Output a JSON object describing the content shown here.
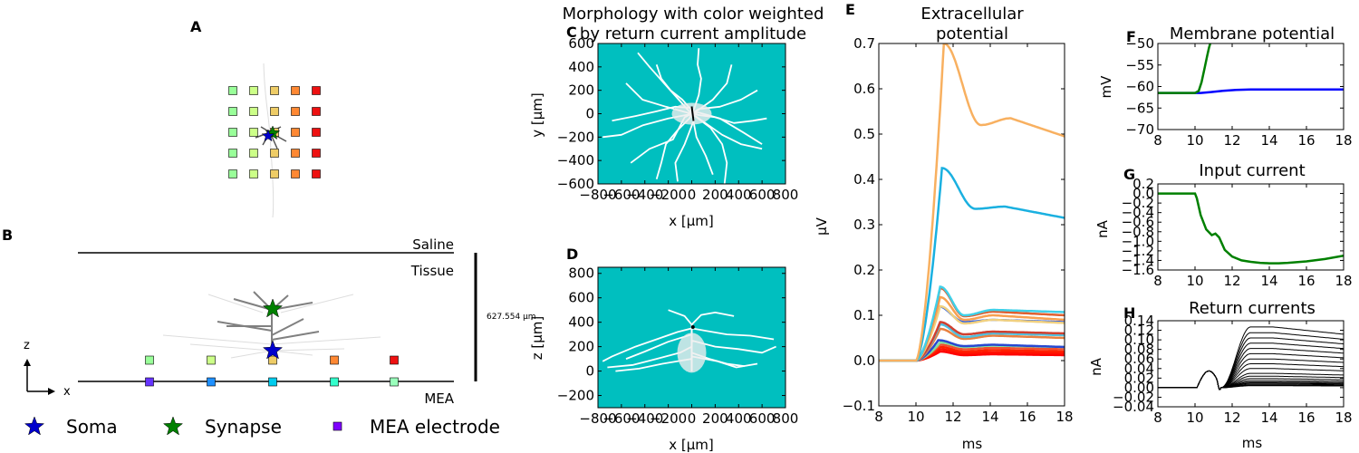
{
  "panels": {
    "A": {
      "letter": "A"
    },
    "B": {
      "letter": "B",
      "saline": "Saline",
      "tissue": "Tissue",
      "mea": "MEA",
      "scale": "627.554 μm",
      "axis_z": "z",
      "axis_x": "x"
    },
    "C": {
      "letter": "C",
      "title_line1": "Morphology with color weighted",
      "title_line2": "by return current amplitude",
      "xlabel": "x [μm]",
      "ylabel": "y [μm]",
      "bg_color": "#00bfbf"
    },
    "D": {
      "letter": "D",
      "xlabel": "x [μm]",
      "ylabel": "z [μm]",
      "bg_color": "#00bfbf"
    },
    "E": {
      "letter": "E",
      "title_line1": "Extracellular",
      "title_line2": "potential",
      "xlabel": "ms",
      "ylabel": "μV"
    },
    "F": {
      "letter": "F",
      "title": "Membrane potential",
      "ylabel": "mV"
    },
    "G": {
      "letter": "G",
      "title": "Input current",
      "ylabel": "nA"
    },
    "H": {
      "letter": "H",
      "title": "Return currents",
      "xlabel": "ms",
      "ylabel": "nA"
    }
  },
  "legend": {
    "soma": {
      "label": "Soma",
      "color": "#0000cc",
      "icon": "star-icon"
    },
    "synapse": {
      "label": "Synapse",
      "color": "#008000",
      "icon": "star-icon"
    },
    "electrode": {
      "label": "MEA electrode",
      "color": "#7f00ff",
      "icon": "square-icon"
    }
  },
  "colors": {
    "electrodes_grid": [
      "#99ff99",
      "#ccff88",
      "#eecc66",
      "#ff8833",
      "#ee1111"
    ],
    "electrodes_mea": [
      "#6633ff",
      "#1e90ff",
      "#00ccee",
      "#33ffcc",
      "#99ffbb"
    ]
  },
  "chart_data": [
    {
      "id": "C",
      "type": "scatter",
      "xlim": [
        -800,
        800
      ],
      "ylim": [
        -600,
        600
      ],
      "xticks": [
        -800,
        -600,
        -400,
        -200,
        0,
        200,
        400,
        600,
        800
      ],
      "yticks": [
        -600,
        -400,
        -200,
        0,
        200,
        400,
        600
      ],
      "xtick_labels": [
        "−800",
        "−600",
        "−400",
        "−200",
        "0",
        "200",
        "400",
        "600",
        "800"
      ],
      "ytick_labels": [
        "−600",
        "−400",
        "−200",
        "0",
        "200",
        "400",
        "600"
      ]
    },
    {
      "id": "D",
      "type": "scatter",
      "xlim": [
        -800,
        800
      ],
      "ylim": [
        -300,
        850
      ],
      "xticks": [
        -800,
        -600,
        -400,
        -200,
        0,
        200,
        400,
        600,
        800
      ],
      "yticks": [
        -200,
        0,
        200,
        400,
        600,
        800
      ],
      "xtick_labels": [
        "−800",
        "−600",
        "−400",
        "−200",
        "0",
        "200",
        "400",
        "600",
        "800"
      ],
      "ytick_labels": [
        "−200",
        "0",
        "200",
        "400",
        "600",
        "800"
      ]
    },
    {
      "id": "E",
      "type": "line",
      "xlim": [
        8,
        18
      ],
      "ylim": [
        -0.1,
        0.7
      ],
      "xticks": [
        8,
        10,
        12,
        14,
        16,
        18
      ],
      "yticks": [
        -0.1,
        0.0,
        0.1,
        0.2,
        0.3,
        0.4,
        0.5,
        0.6,
        0.7
      ],
      "xtick_labels": [
        "8",
        "10",
        "12",
        "14",
        "16",
        "18"
      ],
      "ytick_labels": [
        "−0.1",
        "0.0",
        "0.1",
        "0.2",
        "0.3",
        "0.4",
        "0.5",
        "0.6",
        "0.7"
      ],
      "x_onset": 10.0,
      "series": [
        {
          "color": "#f8b060",
          "peak": 0.7,
          "peak_t": 11.5,
          "trough": 0.52,
          "trough_t": 13.5,
          "hump": 0.535,
          "end": 0.495
        },
        {
          "color": "#1ab0e0",
          "peak": 0.425,
          "peak_t": 11.4,
          "trough": 0.335,
          "trough_t": 13.2,
          "hump": 0.34,
          "end": 0.315
        },
        {
          "color": "#40d0e8",
          "peak": 0.163,
          "peak_t": 11.3,
          "trough": 0.1,
          "trough_t": 12.6,
          "hump": 0.112,
          "end": 0.107
        },
        {
          "color": "#e06030",
          "peak": 0.16,
          "peak_t": 11.3,
          "trough": 0.098,
          "trough_t": 12.6,
          "hump": 0.108,
          "end": 0.1
        },
        {
          "color": "#f8a050",
          "peak": 0.14,
          "peak_t": 11.3,
          "trough": 0.09,
          "trough_t": 12.6,
          "hump": 0.1,
          "end": 0.09
        },
        {
          "color": "#f0d080",
          "peak": 0.12,
          "peak_t": 11.3,
          "trough": 0.082,
          "trough_t": 12.6,
          "hump": 0.09,
          "end": 0.083
        },
        {
          "color": "#3060e0",
          "peak": 0.12,
          "peak_t": 11.2,
          "trough": 0.085,
          "trough_t": 12.6,
          "hump": 0.09,
          "end": 0.085
        },
        {
          "color": "#d04030",
          "peak": 0.085,
          "peak_t": 11.3,
          "trough": 0.058,
          "trough_t": 12.6,
          "hump": 0.064,
          "end": 0.06
        },
        {
          "color": "#50c0e0",
          "peak": 0.08,
          "peak_t": 11.3,
          "trough": 0.052,
          "trough_t": 12.6,
          "hump": 0.06,
          "end": 0.056
        },
        {
          "color": "#e88040",
          "peak": 0.07,
          "peak_t": 11.3,
          "trough": 0.048,
          "trough_t": 12.6,
          "hump": 0.055,
          "end": 0.05
        },
        {
          "color": "#2848d0",
          "peak": 0.045,
          "peak_t": 11.2,
          "trough": 0.032,
          "trough_t": 12.6,
          "hump": 0.035,
          "end": 0.03
        },
        {
          "color": "#80e0a0",
          "peak": 0.04,
          "peak_t": 11.3,
          "trough": 0.03,
          "trough_t": 12.6,
          "hump": 0.033,
          "end": 0.03
        },
        {
          "color": "#f05030",
          "peak": 0.035,
          "peak_t": 11.3,
          "trough": 0.025,
          "trough_t": 12.6,
          "hump": 0.028,
          "end": 0.025
        },
        {
          "color": "#ff2000",
          "peak": 0.03,
          "peak_t": 11.3,
          "trough": 0.02,
          "trough_t": 12.6,
          "hump": 0.023,
          "end": 0.02
        },
        {
          "color": "#ff1000",
          "peak": 0.025,
          "peak_t": 11.3,
          "trough": 0.016,
          "trough_t": 12.6,
          "hump": 0.018,
          "end": 0.016
        },
        {
          "color": "#ff0000",
          "peak": 0.02,
          "peak_t": 11.3,
          "trough": 0.012,
          "trough_t": 12.6,
          "hump": 0.014,
          "end": 0.012
        }
      ]
    },
    {
      "id": "F",
      "type": "line",
      "xlim": [
        8,
        18
      ],
      "ylim": [
        -70,
        -50
      ],
      "xticks": [
        8,
        10,
        12,
        14,
        16,
        18
      ],
      "yticks": [
        -70,
        -65,
        -60,
        -55,
        -50
      ],
      "xtick_labels": [
        "8",
        "10",
        "12",
        "14",
        "16",
        "18"
      ],
      "ytick_labels": [
        "−70",
        "−65",
        "−60",
        "−55",
        "−50"
      ],
      "series": [
        {
          "color": "#0000ff",
          "x": [
            8,
            10,
            10.3,
            10.8,
            11.5,
            12.2,
            13,
            14,
            16,
            18
          ],
          "y": [
            -61.5,
            -61.5,
            -61.5,
            -61.3,
            -61.0,
            -60.8,
            -60.7,
            -60.7,
            -60.7,
            -60.7
          ]
        },
        {
          "color": "#008000",
          "x": [
            8,
            10,
            10.2,
            10.35,
            10.5,
            10.65,
            10.75,
            10.82
          ],
          "y": [
            -61.5,
            -61.5,
            -61.0,
            -59.0,
            -56.0,
            -53.0,
            -51.0,
            -50.0
          ]
        }
      ]
    },
    {
      "id": "G",
      "type": "line",
      "xlim": [
        8,
        18
      ],
      "ylim": [
        -1.6,
        0.2
      ],
      "xticks": [
        8,
        10,
        12,
        14,
        16,
        18
      ],
      "yticks": [
        -1.6,
        -1.4,
        -1.2,
        -1.0,
        -0.8,
        -0.6,
        -0.4,
        -0.2,
        0.0,
        0.2
      ],
      "xtick_labels": [
        "8",
        "10",
        "12",
        "14",
        "16",
        "18"
      ],
      "ytick_labels": [
        "−1.6",
        "−1.4",
        "−1.2",
        "−1.0",
        "−0.8",
        "−0.6",
        "−0.4",
        "−0.2",
        "0.0",
        "0.2"
      ],
      "series": [
        {
          "color": "#008000",
          "x": [
            8,
            10,
            10.1,
            10.3,
            10.6,
            10.9,
            11.1,
            11.3,
            11.6,
            12.0,
            12.5,
            13.0,
            13.5,
            14.0,
            14.5,
            15,
            16,
            17,
            18
          ],
          "y": [
            0,
            0,
            -0.1,
            -0.45,
            -0.75,
            -0.87,
            -0.84,
            -0.92,
            -1.18,
            -1.32,
            -1.4,
            -1.43,
            -1.45,
            -1.46,
            -1.46,
            -1.45,
            -1.42,
            -1.37,
            -1.3
          ]
        }
      ]
    },
    {
      "id": "H",
      "type": "line",
      "xlim": [
        8,
        18
      ],
      "ylim": [
        -0.04,
        0.14
      ],
      "xticks": [
        8,
        10,
        12,
        14,
        16,
        18
      ],
      "yticks": [
        -0.04,
        -0.02,
        0.0,
        0.02,
        0.04,
        0.06,
        0.08,
        0.1,
        0.12,
        0.14
      ],
      "xtick_labels": [
        "8",
        "10",
        "12",
        "14",
        "16",
        "18"
      ],
      "ytick_labels": [
        "−0.04",
        "−0.02",
        "0.00",
        "0.02",
        "0.04",
        "0.06",
        "0.08",
        "0.10",
        "0.12",
        "0.14"
      ],
      "amplitudes": [
        0.127,
        0.115,
        0.104,
        0.093,
        0.082,
        0.071,
        0.06,
        0.05,
        0.04,
        0.03,
        0.024,
        0.019,
        0.015,
        0.012,
        0.01,
        0.008,
        0.006,
        0.005,
        0.004
      ]
    }
  ]
}
